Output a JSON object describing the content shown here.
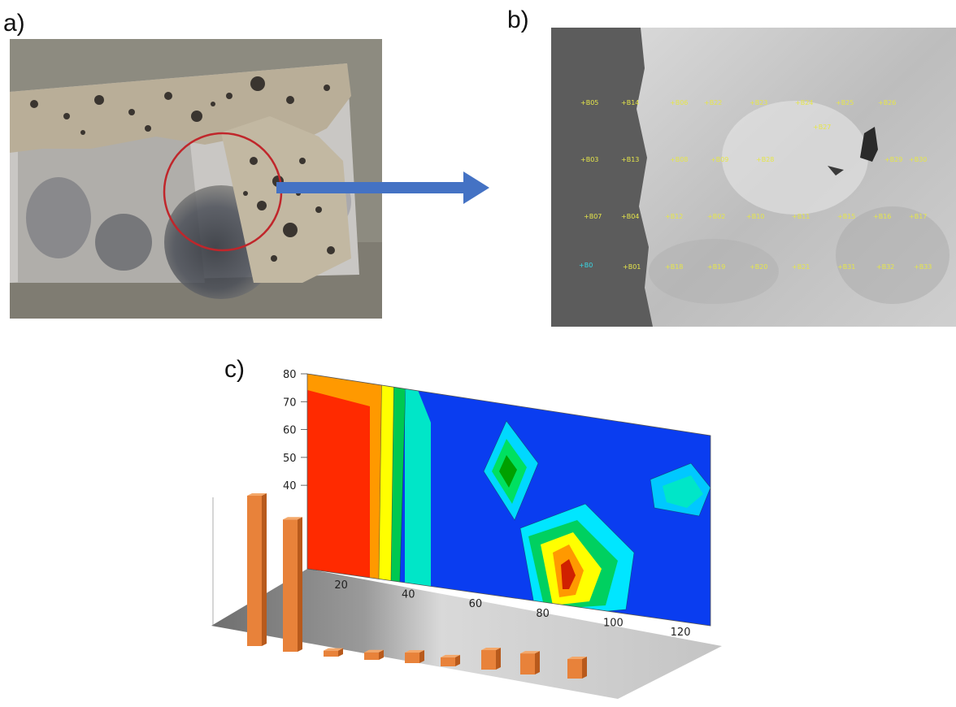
{
  "panels": {
    "a_label": "a)",
    "b_label": "b)",
    "c_label": "c)"
  },
  "sem_spots": {
    "row1": [
      "B05",
      "B14",
      "B06",
      "B22",
      "B23",
      "B24",
      "B25",
      "B26"
    ],
    "row1b": [
      "B27"
    ],
    "row2": [
      "B03",
      "B13",
      "B08",
      "B09",
      "B28",
      "B29",
      "B30"
    ],
    "row3": [
      "B07",
      "B04",
      "B12",
      "B02",
      "B10",
      "B11",
      "B15",
      "B16",
      "B17"
    ],
    "row4": [
      "B01",
      "B18",
      "B19",
      "B20",
      "B21",
      "B31",
      "B32",
      "B33"
    ],
    "reference": "B0"
  },
  "colors": {
    "arrow": "#4472c4",
    "circle": "#c0262b",
    "bars": "#e8823a",
    "spot_text": "#e6e64a"
  },
  "chart_data": {
    "type": "heatmap",
    "title": "",
    "xlabel": "",
    "ylabel": "",
    "x_ticks": [
      20,
      40,
      60,
      80,
      100,
      120
    ],
    "y_ticks": [
      40,
      50,
      60,
      70,
      80
    ],
    "xlim": [
      10,
      130
    ],
    "ylim": [
      10,
      80
    ],
    "colormap": [
      "#0000ff",
      "#00aaff",
      "#00ffcc",
      "#00cc00",
      "#ffff00",
      "#ff9900",
      "#ff0000"
    ],
    "hotspots": [
      {
        "x": 22,
        "y": 50,
        "level": "high"
      },
      {
        "x": 76,
        "y": 50,
        "level": "medium"
      },
      {
        "x": 92,
        "y": 24,
        "level": "high"
      },
      {
        "x": 122,
        "y": 42,
        "level": "low-medium"
      }
    ],
    "bars": {
      "values": [
        100,
        88,
        4,
        5,
        7,
        6,
        13,
        14,
        13
      ]
    }
  }
}
